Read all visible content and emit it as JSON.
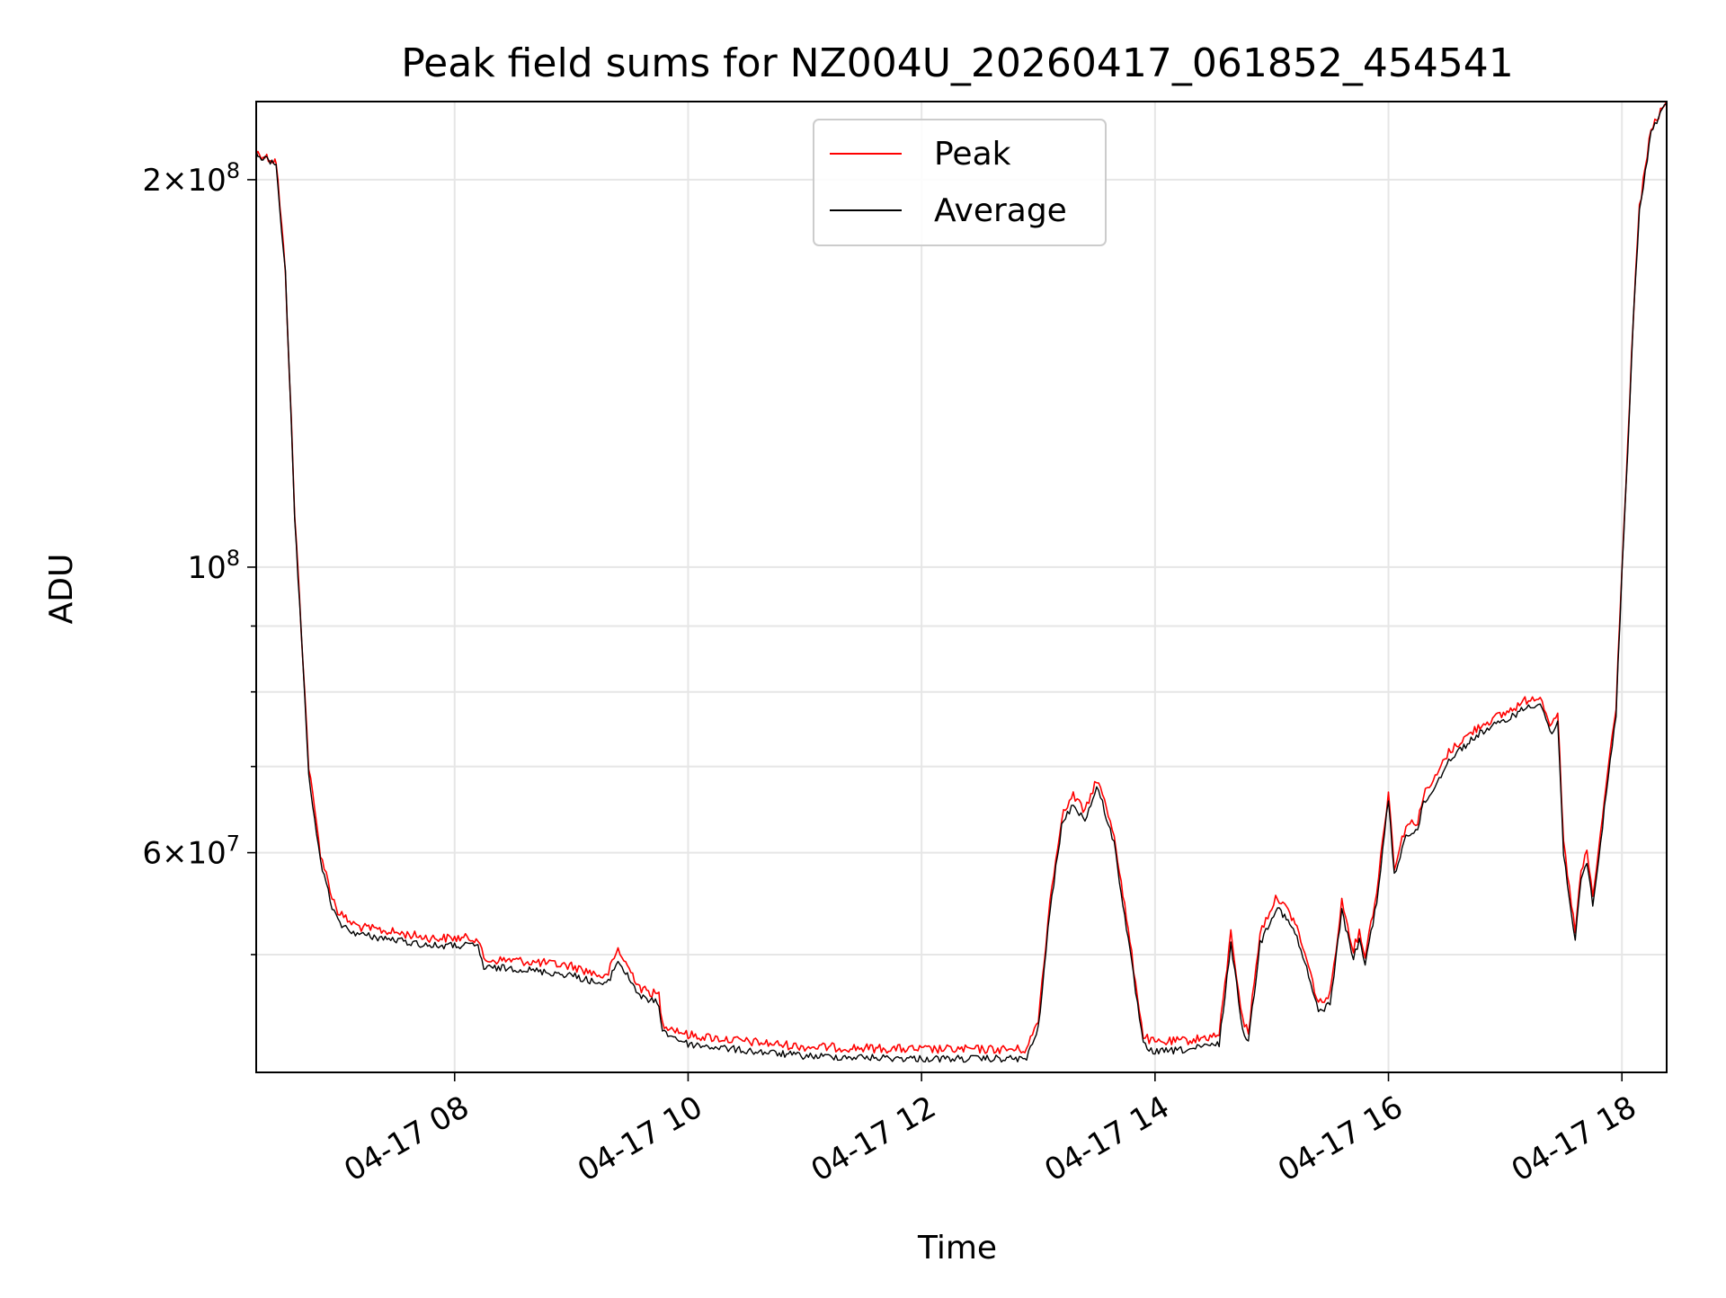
{
  "chart_data": {
    "type": "line",
    "title": "Peak field sums for NZ004U_20260417_061852_454541",
    "xlabel": "Time",
    "ylabel": "ADU",
    "y_scale": "log",
    "ylim": [
      40500000,
      230000000
    ],
    "xlim": [
      "04-17 06:18",
      "04-17 18:23"
    ],
    "grid": true,
    "legend_position": "top-center",
    "x_ticks": [
      "04-17 08",
      "04-17 10",
      "04-17 12",
      "04-17 14",
      "04-17 16",
      "04-17 18"
    ],
    "y_ticks": [
      {
        "value": 200000000,
        "mantissa": "2",
        "exponent": "8"
      },
      {
        "value": 100000000,
        "mantissa": "",
        "exponent": "8"
      },
      {
        "value": 60000000,
        "mantissa": "6",
        "exponent": "7"
      }
    ],
    "y_minor_ticks": [
      50000000,
      70000000,
      80000000,
      90000000
    ],
    "series": [
      {
        "name": "Peak",
        "color": "#ff0000",
        "x_hours": [
          6.3,
          6.45,
          6.47,
          6.55,
          6.6,
          6.63,
          6.7,
          6.75,
          6.85,
          6.95,
          7.0,
          7.1,
          7.2,
          7.5,
          7.8,
          8.0,
          8.2,
          8.25,
          8.5,
          9.0,
          9.3,
          9.4,
          9.45,
          9.6,
          9.75,
          9.78,
          10.0,
          10.5,
          11.0,
          11.5,
          12.0,
          12.5,
          12.9,
          13.0,
          13.1,
          13.2,
          13.3,
          13.4,
          13.5,
          13.55,
          13.65,
          13.8,
          13.9,
          14.0,
          14.3,
          14.55,
          14.65,
          14.75,
          14.8,
          14.9,
          15.0,
          15.05,
          15.2,
          15.3,
          15.4,
          15.5,
          15.6,
          15.7,
          15.75,
          15.8,
          15.9,
          16.0,
          16.05,
          16.15,
          16.25,
          16.3,
          16.4,
          16.5,
          16.6,
          16.8,
          17.0,
          17.2,
          17.3,
          17.4,
          17.45,
          17.5,
          17.6,
          17.65,
          17.7,
          17.75,
          17.8,
          17.85,
          17.95,
          18.0,
          18.05,
          18.1,
          18.15,
          18.25,
          18.38
        ],
        "values": [
          210000000,
          207000000,
          207000000,
          170000000,
          130000000,
          110000000,
          85000000,
          70000000,
          60000000,
          55500000,
          54000000,
          53000000,
          52500000,
          52000000,
          51500000,
          51500000,
          51500000,
          49500000,
          49500000,
          49000000,
          48000000,
          50500000,
          49500000,
          47000000,
          46500000,
          44200000,
          43300000,
          42800000,
          42400000,
          42300000,
          42200000,
          42200000,
          42200000,
          44500000,
          55000000,
          64000000,
          66500000,
          64500000,
          68500000,
          66500000,
          62000000,
          50000000,
          43200000,
          42700000,
          42900000,
          43300000,
          52000000,
          44500000,
          43500000,
          52000000,
          54500000,
          55500000,
          53000000,
          49500000,
          45800000,
          46500000,
          55000000,
          50500000,
          52000000,
          50000000,
          56000000,
          67000000,
          58500000,
          63000000,
          63500000,
          66500000,
          68500000,
          71500000,
          73000000,
          75500000,
          77000000,
          79000000,
          79500000,
          75000000,
          77000000,
          61000000,
          52000000,
          58000000,
          60000000,
          55500000,
          60000000,
          66000000,
          78000000,
          100000000,
          124000000,
          158000000,
          190000000,
          219000000,
          230000000
        ]
      },
      {
        "name": "Average",
        "color": "#000000",
        "x_hours": [
          6.3,
          6.45,
          6.47,
          6.55,
          6.6,
          6.63,
          6.7,
          6.75,
          6.85,
          6.95,
          7.0,
          7.1,
          7.2,
          7.5,
          7.8,
          8.0,
          8.2,
          8.25,
          8.5,
          9.0,
          9.3,
          9.4,
          9.45,
          9.6,
          9.75,
          9.78,
          10.0,
          10.5,
          11.0,
          11.5,
          12.0,
          12.5,
          12.9,
          13.0,
          13.1,
          13.2,
          13.3,
          13.4,
          13.5,
          13.55,
          13.65,
          13.8,
          13.9,
          14.0,
          14.3,
          14.55,
          14.65,
          14.75,
          14.8,
          14.9,
          15.0,
          15.05,
          15.2,
          15.3,
          15.4,
          15.5,
          15.6,
          15.7,
          15.75,
          15.8,
          15.9,
          16.0,
          16.05,
          16.15,
          16.25,
          16.3,
          16.4,
          16.5,
          16.6,
          16.8,
          17.0,
          17.2,
          17.3,
          17.4,
          17.45,
          17.5,
          17.6,
          17.65,
          17.7,
          17.75,
          17.8,
          17.85,
          17.95,
          18.0,
          18.05,
          18.1,
          18.15,
          18.25,
          18.38
        ],
        "values": [
          209000000,
          206000000,
          206000000,
          169000000,
          129000000,
          109000000,
          84000000,
          69000000,
          59000000,
          54500000,
          53000000,
          52200000,
          51800000,
          51300000,
          50800000,
          50800000,
          50800000,
          48800000,
          48800000,
          48200000,
          47300000,
          49500000,
          48600000,
          46300000,
          45800000,
          43600000,
          42600000,
          42100000,
          41700000,
          41600000,
          41500000,
          41500000,
          41500000,
          43800000,
          54000000,
          63000000,
          65500000,
          63500000,
          67500000,
          65500000,
          61000000,
          49200000,
          42500000,
          42000000,
          42200000,
          42600000,
          51000000,
          43800000,
          42800000,
          51000000,
          53500000,
          54500000,
          52000000,
          48700000,
          45100000,
          45800000,
          54000000,
          49700000,
          51200000,
          49200000,
          55000000,
          66000000,
          57500000,
          62000000,
          62500000,
          65500000,
          67500000,
          70500000,
          72000000,
          74500000,
          76000000,
          78000000,
          78500000,
          74000000,
          76000000,
          60000000,
          51200000,
          57000000,
          59000000,
          54700000,
          59000000,
          65000000,
          77000000,
          99000000,
          123000000,
          157000000,
          189000000,
          218000000,
          229000000
        ]
      }
    ]
  }
}
